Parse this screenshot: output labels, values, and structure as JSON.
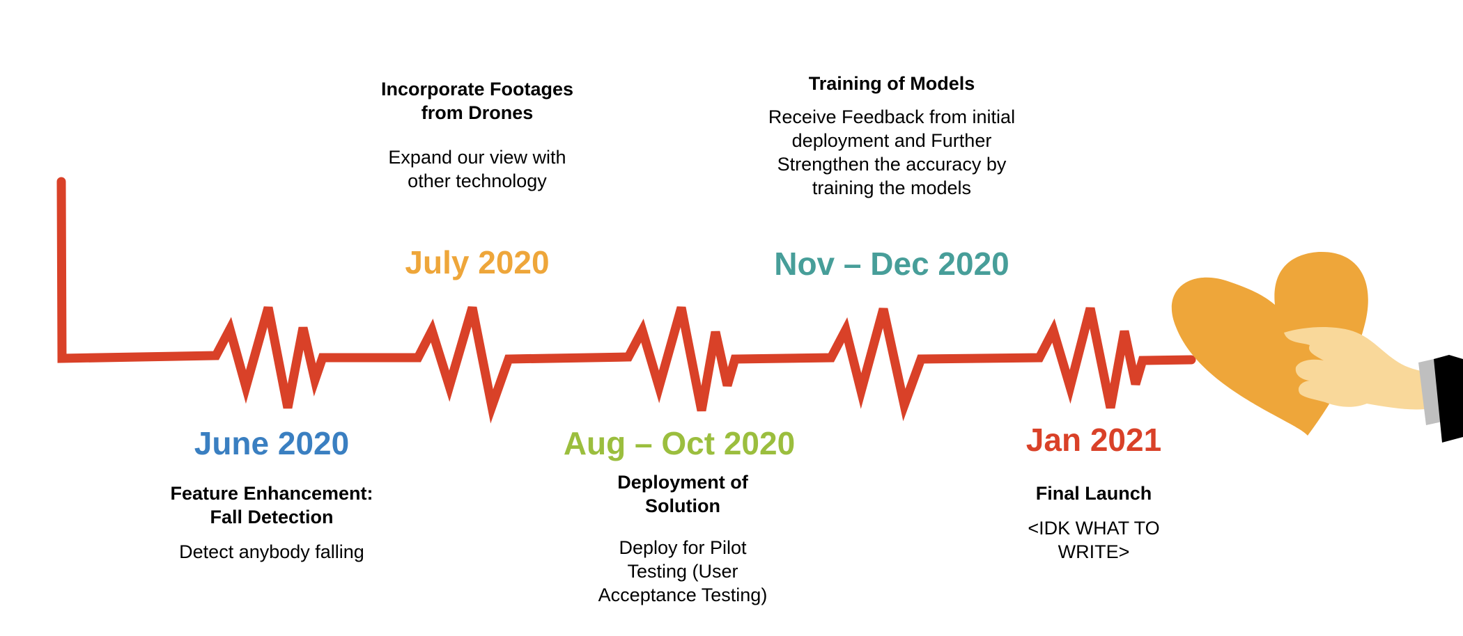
{
  "colors": {
    "line": "#D94128",
    "june": "#3A7FC1",
    "july": "#EEA63A",
    "aug_oct": "#9BBE3E",
    "nov_dec": "#479E99",
    "jan": "#D94128",
    "heart": "#EEA63A",
    "hand": "#F9D89A",
    "cuff": "#BFBFBF",
    "sleeve": "#000000",
    "text": "#000000"
  },
  "milestones": [
    {
      "id": "june-2020",
      "date": "June 2020",
      "title_lines": [
        "Feature Enhancement:",
        "Fall Detection"
      ],
      "desc_lines": [
        "Detect anybody falling"
      ]
    },
    {
      "id": "july-2020",
      "date": "July 2020",
      "title_lines": [
        "Incorporate Footages",
        "from Drones"
      ],
      "desc_lines": [
        "Expand our view with",
        "other technology"
      ]
    },
    {
      "id": "aug-oct-2020",
      "date": "Aug – Oct 2020",
      "title_lines": [
        "Deployment of",
        "Solution"
      ],
      "desc_lines": [
        "Deploy for Pilot",
        "Testing (User",
        "Acceptance Testing)"
      ]
    },
    {
      "id": "nov-dec-2020",
      "date": "Nov – Dec 2020",
      "title_lines": [
        "Training of Models"
      ],
      "desc_lines": [
        "Receive Feedback from initial",
        "deployment and Further",
        "Strengthen the accuracy by",
        "training the models"
      ]
    },
    {
      "id": "jan-2021",
      "date": "Jan 2021",
      "title_lines": [
        "Final Launch"
      ],
      "desc_lines": [
        "<IDK WHAT TO",
        "WRITE>"
      ]
    }
  ],
  "icons": {
    "heart": "heart-icon",
    "hand": "hand-icon"
  }
}
